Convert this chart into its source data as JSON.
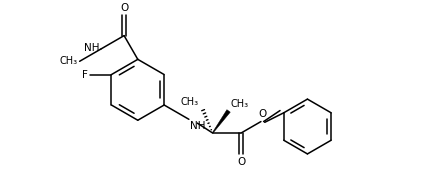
{
  "bg_color": "#ffffff",
  "line_color": "#000000",
  "figsize": [
    4.24,
    1.94
  ],
  "dpi": 100,
  "lw": 1.1,
  "font_size": 7.5,
  "xlim": [
    0.0,
    10.0
  ],
  "ylim": [
    0.0,
    5.0
  ]
}
